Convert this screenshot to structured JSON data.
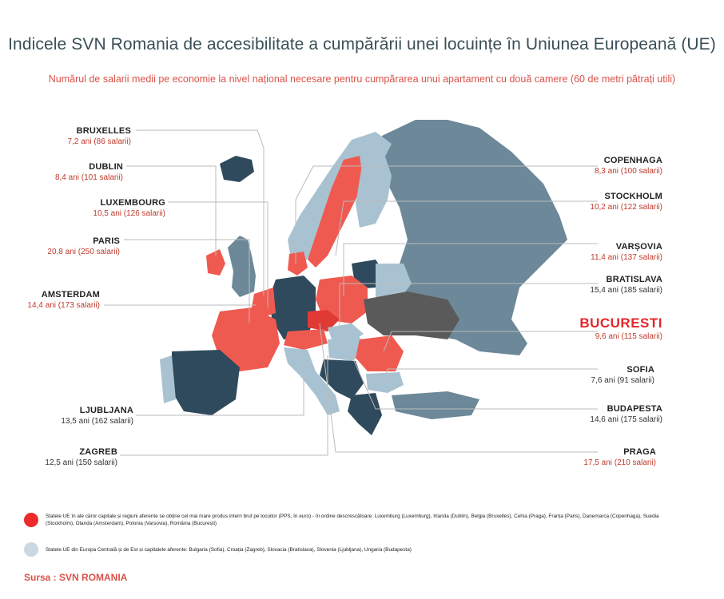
{
  "title": "Indicele SVN Romania de accesibilitate a cumpărării unei locuințe în Uniunea Europeană (UE)",
  "subtitle": "Numărul de salarii medii pe economie la nivel național necesare pentru cumpărarea  unui apartament cu două camere (60 de metri pătrați utili)",
  "colors": {
    "red": "#ef5a50",
    "light_blue": "#a9c2d1",
    "dark_blue": "#2f4a5c",
    "mid_blue": "#6c8899",
    "dark_gray": "#5a5a5a"
  },
  "cities_left": [
    {
      "name": "BRUXELLES",
      "value": "7,2 ani (86 salarii)"
    },
    {
      "name": "DUBLIN",
      "value": "8,4 ani (101 salarii)"
    },
    {
      "name": "LUXEMBOURG",
      "value": "10,5 ani (126 salarii)"
    },
    {
      "name": "PARIS",
      "value": "20,8 ani (250 salarii)"
    },
    {
      "name": "AMSTERDAM",
      "value": "14,4 ani (173 salarii)"
    },
    {
      "name": "LJUBLJANA",
      "value": "13,5 ani (162 salarii)"
    },
    {
      "name": "ZAGREB",
      "value": "12,5 ani (150 salarii)"
    }
  ],
  "cities_right": [
    {
      "name": "COPENHAGA",
      "value": "8,3 ani (100 salarii)"
    },
    {
      "name": "STOCKHOLM",
      "value": "10,2 ani (122 salarii)"
    },
    {
      "name": "VARȘOVIA",
      "value": "11,4 ani (137 salarii)"
    },
    {
      "name": "BRATISLAVA",
      "value": "15,4 ani (185 salarii)"
    },
    {
      "name": "BUCURESTI",
      "value": "9,6 ani (115 salarii)"
    },
    {
      "name": "SOFIA",
      "value": "7,6 ani (91 salarii)"
    },
    {
      "name": "BUDAPESTA",
      "value": "14,6 ani (175 salarii)"
    },
    {
      "name": "PRAGA",
      "value": "17,5 ani (210 salarii)"
    }
  ],
  "legend": [
    {
      "text": "Statele UE în ale căror capitale și regiuni aferente se obține cel mai mare produs intern brut pe locuitor (PPS, în euro) - în ordine descrescătoare: Luxemburg (Luxemburg), Irlanda (Dublin), Belgia (Bruxelles), Cehia (Praga), Franța (Paris), Danemarca (Copenhaga), Suedia (Stockholm), Olanda (Amsterdam), Polonia (Varșovia), România (București)"
    },
    {
      "text": "Statele UE din Europa Centrală și de Est și capitalele aferente: Bulgaria (Sofia), Croația (Zagreb), Slovacia (Bratislava), Slovenia (Ljubljana), Ungaria (Budapesta)"
    }
  ],
  "source": "Sursa : SVN ROMANIA"
}
